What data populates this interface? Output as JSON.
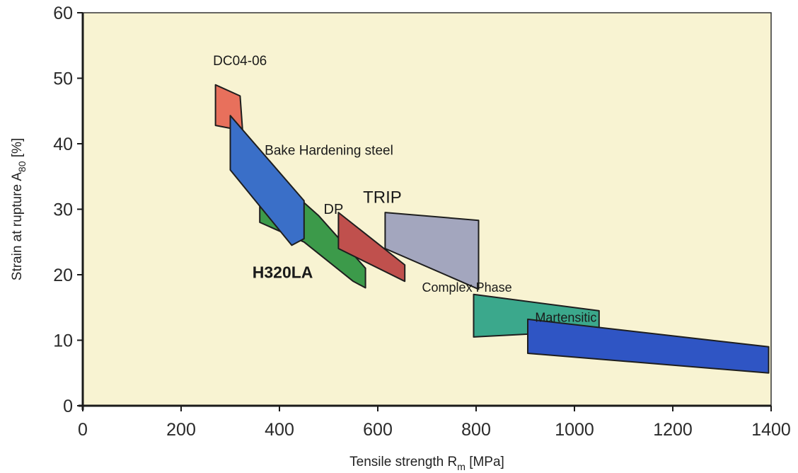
{
  "chart_data": {
    "type": "area",
    "xlabel": "Tensile strength R",
    "xlabel_sub": "m",
    "xlabel_unit": " [MPa]",
    "ylabel": "Strain at rupture A",
    "ylabel_sub": "80",
    "ylabel_unit": " [%]",
    "xlim": [
      0,
      1400
    ],
    "ylim": [
      0,
      60
    ],
    "xticks": [
      0,
      200,
      400,
      600,
      800,
      1000,
      1200,
      1400
    ],
    "yticks": [
      0,
      10,
      20,
      30,
      40,
      50,
      60
    ],
    "grid": false,
    "background_color": "#f8f3d2",
    "series": [
      {
        "name": "DC04-06",
        "color": "#e8705c",
        "label_size": 19,
        "label_weight": "normal",
        "label_at": [
          265,
          52
        ],
        "polygon": [
          [
            270,
            49
          ],
          [
            320,
            47.3
          ],
          [
            325,
            42
          ],
          [
            270,
            42.8
          ]
        ]
      },
      {
        "name": "H320LA",
        "color": "#3c9a4a",
        "label_size": 23,
        "label_weight": "bold",
        "label_at": [
          345,
          19.5
        ],
        "polygon": [
          [
            360,
            31
          ],
          [
            420,
            30
          ],
          [
            450,
            31
          ],
          [
            480,
            29
          ],
          [
            575,
            21
          ],
          [
            575,
            18
          ],
          [
            550,
            19
          ],
          [
            450,
            25
          ],
          [
            360,
            28
          ]
        ]
      },
      {
        "name": "Bake Hardening steel",
        "color": "#3a6fc8",
        "label_size": 19,
        "label_weight": "normal",
        "label_at": [
          370,
          38.3
        ],
        "polygon": [
          [
            300,
            44.3
          ],
          [
            450,
            31.3
          ],
          [
            450,
            25.5
          ],
          [
            425,
            24.5
          ],
          [
            300,
            36
          ]
        ]
      },
      {
        "name": "DP",
        "color": "#c0504d",
        "label_size": 20,
        "label_weight": "normal",
        "label_at": [
          490,
          29.3
        ],
        "polygon": [
          [
            520,
            29.5
          ],
          [
            655,
            21.5
          ],
          [
            655,
            19
          ],
          [
            520,
            24
          ]
        ]
      },
      {
        "name": "TRIP",
        "color": "#a3a6be",
        "label_size": 24,
        "label_weight": "normal",
        "label_at": [
          570,
          31
        ],
        "polygon": [
          [
            615,
            29.5
          ],
          [
            805,
            28.3
          ],
          [
            805,
            17.8
          ],
          [
            615,
            24
          ]
        ]
      },
      {
        "name": "Complex Phase",
        "color": "#3ba88c",
        "label_size": 18,
        "label_weight": "normal",
        "label_at": [
          690,
          17.4
        ],
        "polygon": [
          [
            795,
            17
          ],
          [
            1050,
            14.5
          ],
          [
            1050,
            11.5
          ],
          [
            795,
            10.5
          ]
        ]
      },
      {
        "name": "Martensitic",
        "color": "#2f55c4",
        "label_size": 18,
        "label_weight": "normal",
        "label_at": [
          920,
          12.8
        ],
        "polygon": [
          [
            905,
            13.2
          ],
          [
            1395,
            9
          ],
          [
            1395,
            5
          ],
          [
            905,
            8
          ]
        ]
      }
    ]
  }
}
